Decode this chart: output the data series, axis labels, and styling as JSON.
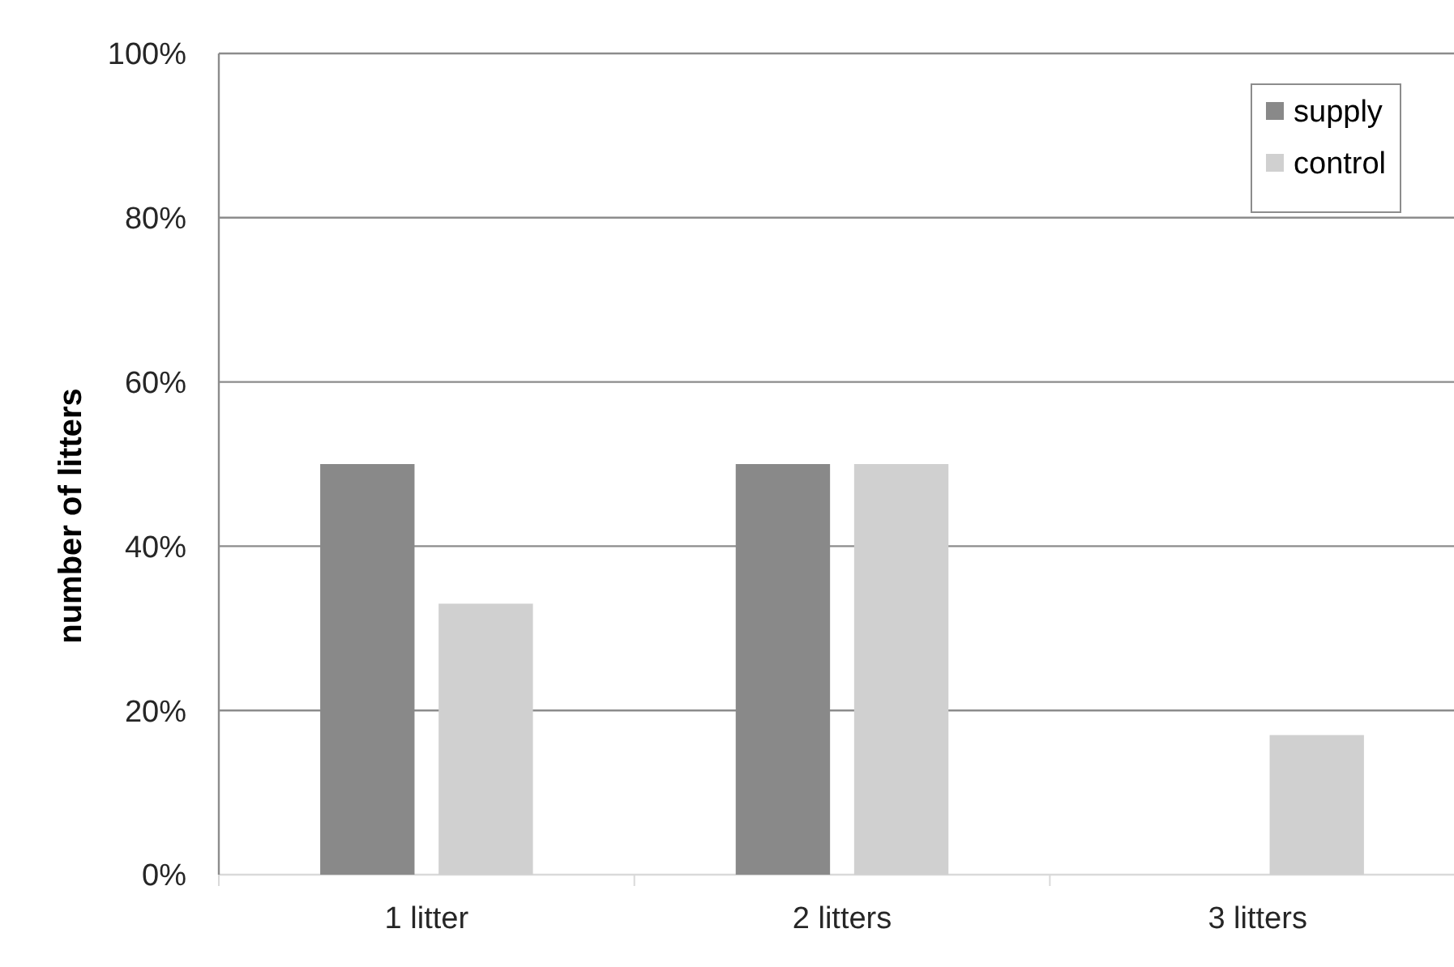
{
  "chart_data": {
    "type": "bar",
    "ylabel": "number of litters",
    "categories": [
      "1 litter",
      "2 litters",
      "3 litters"
    ],
    "series": [
      {
        "name": "supply",
        "color": "#898989",
        "values": [
          50,
          50,
          0
        ]
      },
      {
        "name": "control",
        "color": "#d0d0d0",
        "values": [
          33,
          50,
          17
        ]
      }
    ],
    "ylim": [
      0,
      100
    ],
    "yticks": [
      {
        "value": 0,
        "label": "0%"
      },
      {
        "value": 20,
        "label": "20%"
      },
      {
        "value": 40,
        "label": "40%"
      },
      {
        "value": 60,
        "label": "60%"
      },
      {
        "value": 80,
        "label": "80%"
      },
      {
        "value": 100,
        "label": "100%"
      }
    ],
    "grid": "y",
    "legend": "top right"
  }
}
